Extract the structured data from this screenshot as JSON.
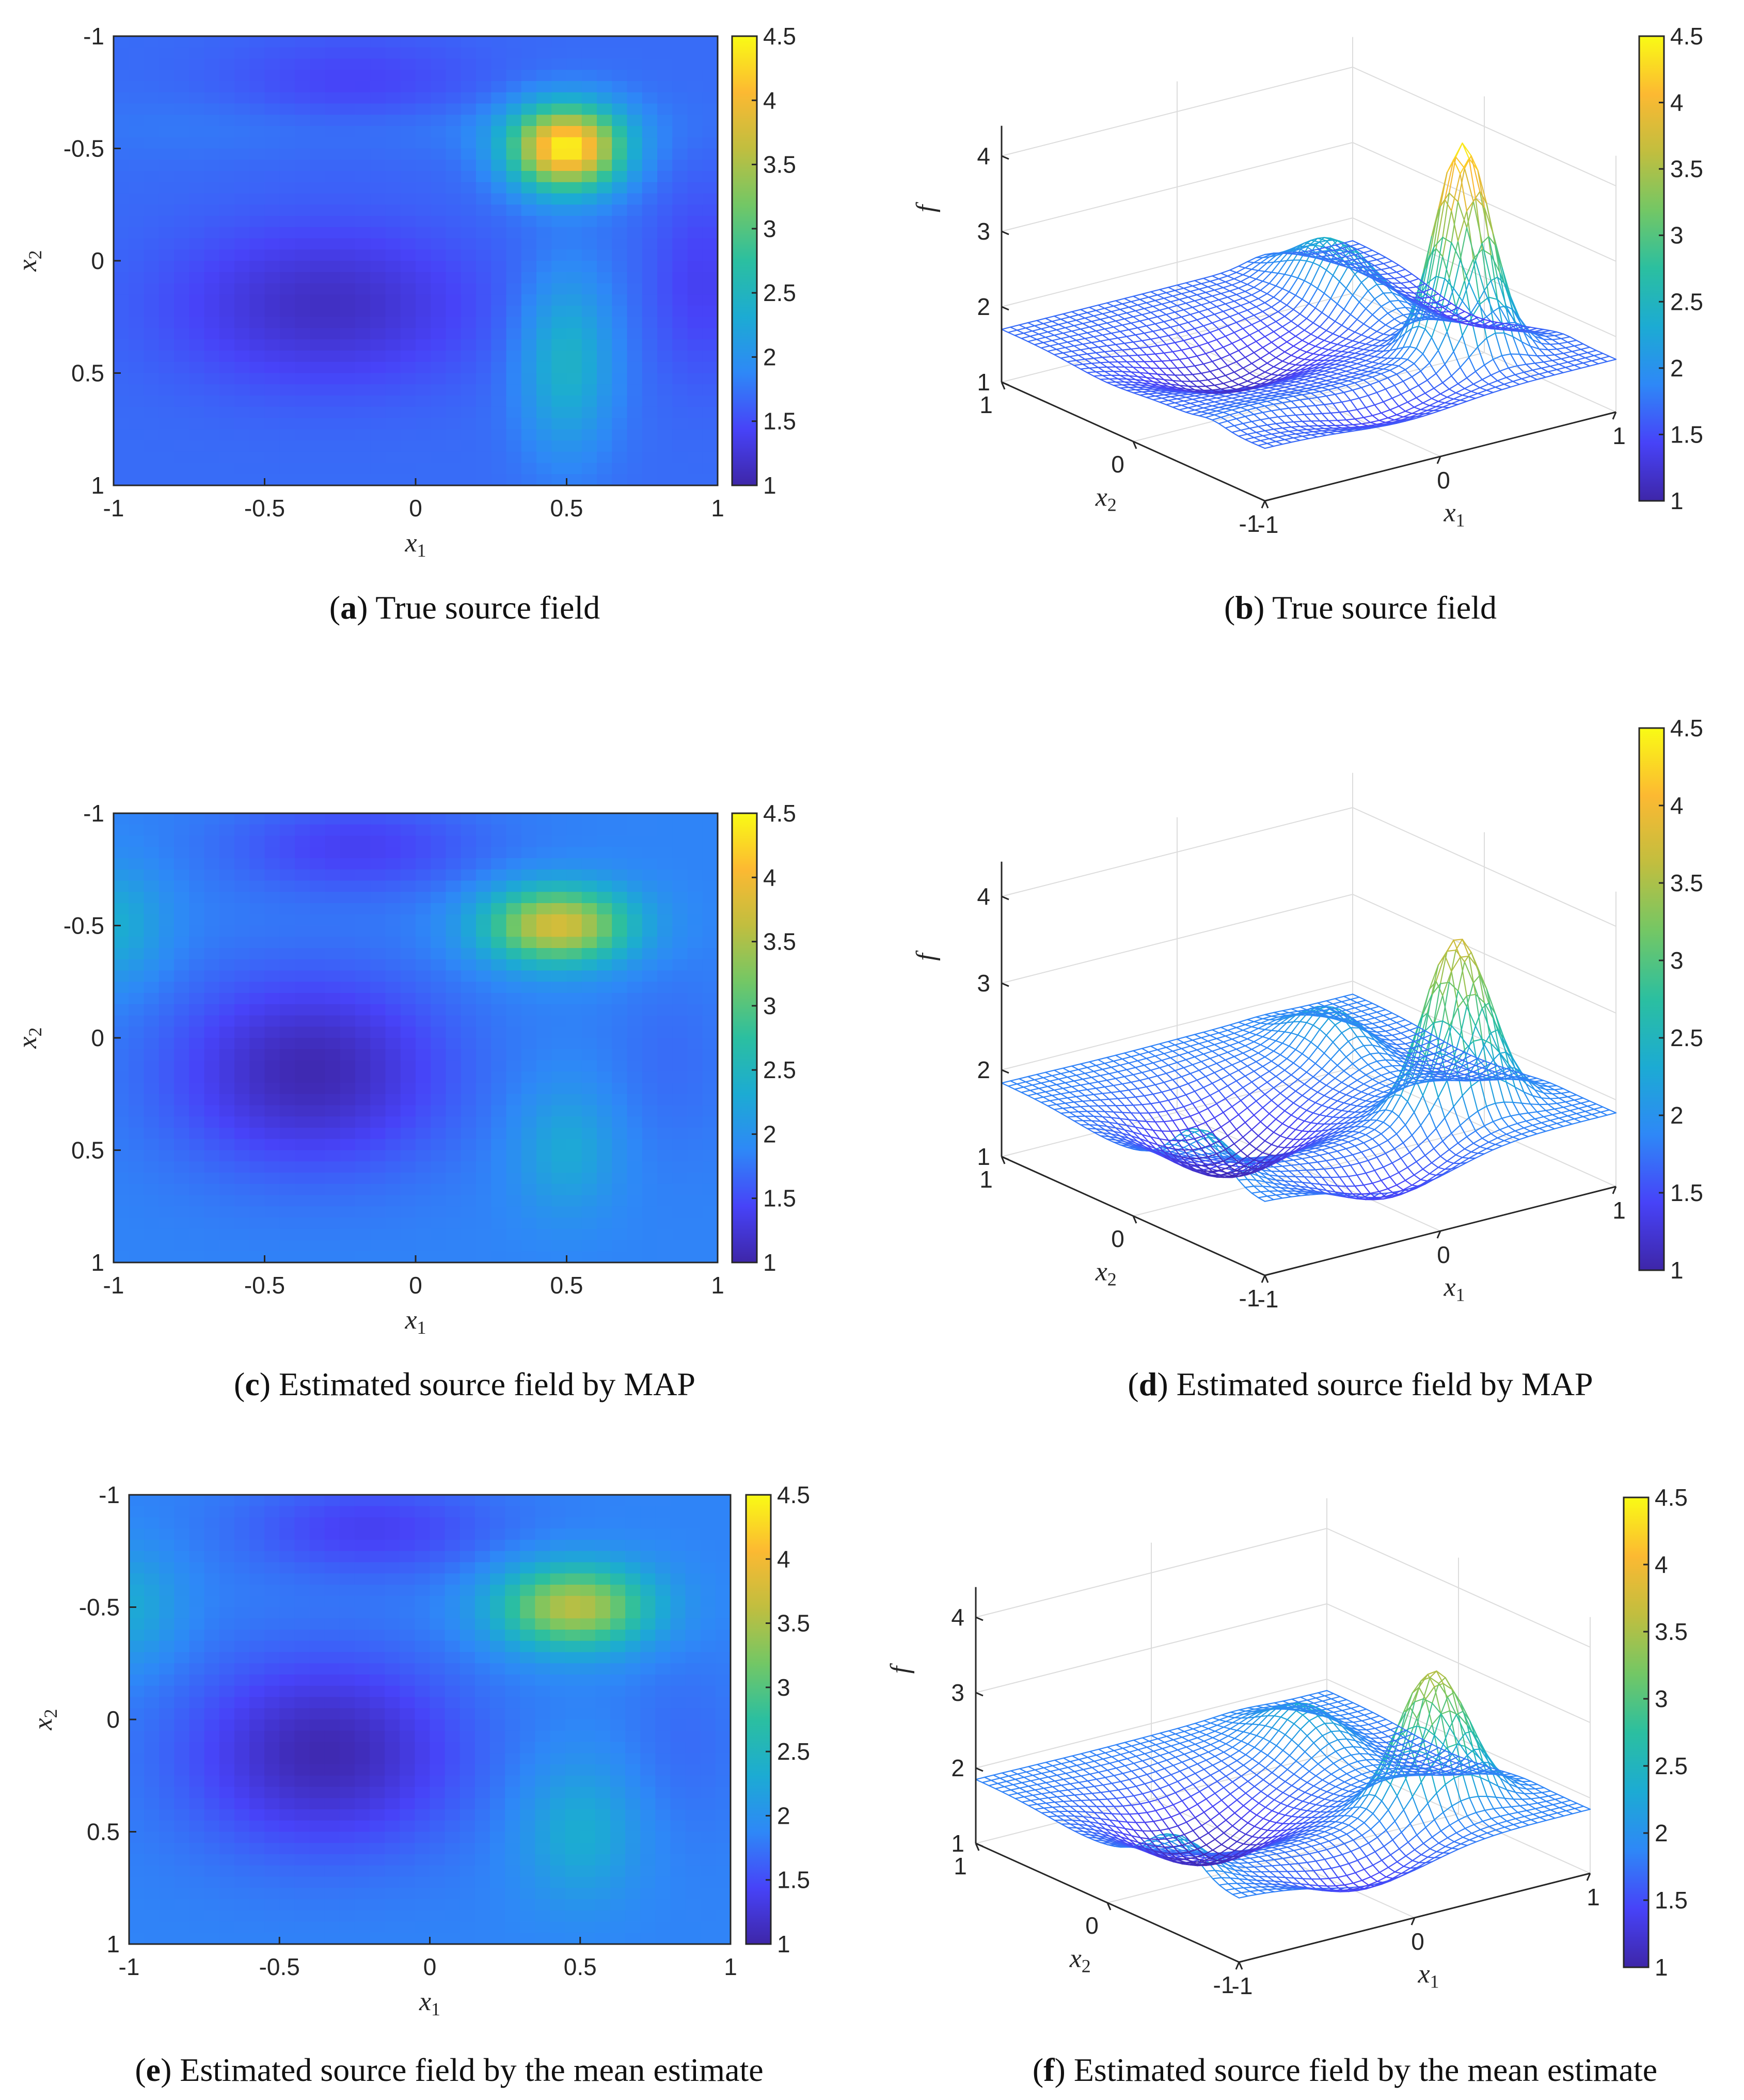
{
  "panels": [
    {
      "id": "a",
      "letter": "a",
      "caption": "True source field"
    },
    {
      "id": "b",
      "letter": "b",
      "caption": "True source field"
    },
    {
      "id": "c",
      "letter": "c",
      "caption": "Estimated source field by MAP"
    },
    {
      "id": "d",
      "letter": "d",
      "caption": "Estimated source field by MAP"
    },
    {
      "id": "e",
      "letter": "e",
      "caption": "Estimated source field by the mean estimate"
    },
    {
      "id": "f",
      "letter": "f",
      "caption": "Estimated source field by the mean estimate"
    }
  ],
  "colormap": [
    "#3e26a8",
    "#4743f8",
    "#2e88f7",
    "#1cabd3",
    "#2bbfa0",
    "#73c765",
    "#c1be3f",
    "#fcb932",
    "#f9fb15"
  ],
  "chart_data": [
    {
      "panel": "a",
      "type": "heatmap",
      "field": "true",
      "xlabel": "x1",
      "ylabel": "x2",
      "xticks": [
        "-1",
        "-0.5",
        "0",
        "0.5",
        "1"
      ],
      "yticks": [
        "-1",
        "-0.5",
        "0",
        "0.5",
        "1"
      ],
      "xlim": [
        -1,
        1
      ],
      "ylim": [
        -1,
        1
      ],
      "y_reversed": true,
      "colorbar": {
        "ticks": [
          "1",
          "1.5",
          "2",
          "2.5",
          "3",
          "3.5",
          "4",
          "4.5"
        ],
        "range": [
          1,
          4.5
        ]
      },
      "field_params": {
        "base": 1.7,
        "bumps": [
          {
            "x": 0.5,
            "y": -0.5,
            "amp": 2.7,
            "sx": 0.13,
            "sy": 0.13
          },
          {
            "x": 0.5,
            "y": 0.45,
            "amp": 0.75,
            "sx": 0.11,
            "sy": 0.28
          },
          {
            "x": -0.3,
            "y": 0.2,
            "amp": -0.55,
            "sx": 0.35,
            "sy": 0.25
          },
          {
            "x": -0.2,
            "y": -0.75,
            "amp": -0.3,
            "sx": 0.3,
            "sy": 0.18
          },
          {
            "x": 0.95,
            "y": 0.1,
            "amp": -0.3,
            "sx": 0.12,
            "sy": 0.3
          },
          {
            "x": -0.1,
            "y": -0.6,
            "amp": 0.2,
            "sx": 0.6,
            "sy": 0.1
          }
        ]
      }
    },
    {
      "panel": "b",
      "type": "surface",
      "field": "true",
      "zlabel": "f",
      "xlabel": "x1",
      "ylabel": "x2",
      "zticks": [
        "1",
        "2",
        "3",
        "4"
      ],
      "x1ticks": [
        "-1",
        "0",
        "1"
      ],
      "x2ticks": [
        "-1",
        "0",
        "1"
      ],
      "colorbar": {
        "ticks": [
          "1",
          "1.5",
          "2",
          "2.5",
          "3",
          "3.5",
          "4",
          "4.5"
        ],
        "range": [
          1,
          4.5
        ]
      }
    },
    {
      "panel": "c",
      "type": "heatmap",
      "field": "map",
      "xlabel": "x1",
      "ylabel": "x2",
      "xticks": [
        "-1",
        "-0.5",
        "0",
        "0.5",
        "1"
      ],
      "yticks": [
        "-1",
        "-0.5",
        "0",
        "0.5",
        "1"
      ],
      "xlim": [
        -1,
        1
      ],
      "ylim": [
        -1,
        1
      ],
      "y_reversed": true,
      "colorbar": {
        "ticks": [
          "1",
          "1.5",
          "2",
          "2.5",
          "3",
          "3.5",
          "4",
          "4.5"
        ],
        "range": [
          1,
          4.5
        ]
      },
      "field_params": {
        "base": 1.85,
        "bumps": [
          {
            "x": 0.47,
            "y": -0.5,
            "amp": 1.95,
            "sx": 0.17,
            "sy": 0.12
          },
          {
            "x": 0.5,
            "y": 0.5,
            "amp": 0.45,
            "sx": 0.12,
            "sy": 0.2
          },
          {
            "x": -0.35,
            "y": 0.15,
            "amp": -0.8,
            "sx": 0.32,
            "sy": 0.3
          },
          {
            "x": -0.2,
            "y": -0.85,
            "amp": -0.45,
            "sx": 0.3,
            "sy": 0.15
          },
          {
            "x": -1.0,
            "y": -0.5,
            "amp": 0.5,
            "sx": 0.12,
            "sy": 0.18
          },
          {
            "x": 0.85,
            "y": 0.1,
            "amp": -0.15,
            "sx": 0.15,
            "sy": 0.3
          }
        ]
      }
    },
    {
      "panel": "d",
      "type": "surface",
      "field": "map",
      "zlabel": "f",
      "xlabel": "x1",
      "ylabel": "x2",
      "zticks": [
        "1",
        "2",
        "3",
        "4"
      ],
      "x1ticks": [
        "-1",
        "0",
        "1"
      ],
      "x2ticks": [
        "-1",
        "0",
        "1"
      ],
      "colorbar": {
        "ticks": [
          "1",
          "1.5",
          "2",
          "2.5",
          "3",
          "3.5",
          "4",
          "4.5"
        ],
        "range": [
          1,
          4.5
        ]
      }
    },
    {
      "panel": "e",
      "type": "heatmap",
      "field": "mean",
      "xlabel": "x1",
      "ylabel": "x2",
      "xticks": [
        "-1",
        "-0.5",
        "0",
        "0.5",
        "1"
      ],
      "yticks": [
        "-1",
        "-0.5",
        "0",
        "0.5",
        "1"
      ],
      "xlim": [
        -1,
        1
      ],
      "ylim": [
        -1,
        1
      ],
      "y_reversed": true,
      "colorbar": {
        "ticks": [
          "1",
          "1.5",
          "2",
          "2.5",
          "3",
          "3.5",
          "4",
          "4.5"
        ],
        "range": [
          1,
          4.5
        ]
      },
      "field_params": {
        "base": 1.85,
        "bumps": [
          {
            "x": 0.48,
            "y": -0.5,
            "amp": 1.75,
            "sx": 0.18,
            "sy": 0.13
          },
          {
            "x": 0.5,
            "y": 0.5,
            "amp": 0.5,
            "sx": 0.14,
            "sy": 0.22
          },
          {
            "x": -0.35,
            "y": 0.15,
            "amp": -0.8,
            "sx": 0.32,
            "sy": 0.3
          },
          {
            "x": -0.2,
            "y": -0.85,
            "amp": -0.45,
            "sx": 0.3,
            "sy": 0.15
          },
          {
            "x": -1.0,
            "y": -0.5,
            "amp": 0.45,
            "sx": 0.12,
            "sy": 0.18
          },
          {
            "x": 0.85,
            "y": 0.1,
            "amp": -0.15,
            "sx": 0.15,
            "sy": 0.3
          }
        ]
      }
    },
    {
      "panel": "f",
      "type": "surface",
      "field": "mean",
      "zlabel": "f",
      "xlabel": "x1",
      "ylabel": "x2",
      "zticks": [
        "1",
        "2",
        "3",
        "4"
      ],
      "x1ticks": [
        "-1",
        "0",
        "1"
      ],
      "x2ticks": [
        "-1",
        "0",
        "1"
      ],
      "colorbar": {
        "ticks": [
          "1",
          "1.5",
          "2",
          "2.5",
          "3",
          "3.5",
          "4",
          "4.5"
        ],
        "range": [
          1,
          4.5
        ]
      }
    }
  ]
}
